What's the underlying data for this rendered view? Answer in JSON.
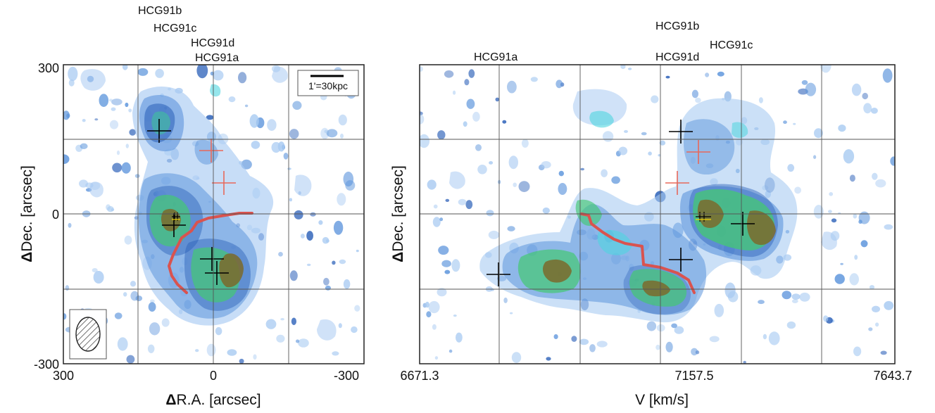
{
  "figure": {
    "colors": {
      "contour_light": "#a9cbf2",
      "contour_mid": "#5d95dc",
      "contour_dark": "#2a5fb8",
      "contour_cyan": "#4fd5df",
      "contour_green": "#44c873",
      "contour_core": "#7b6a2c",
      "cross_black": "#000000",
      "cross_red": "#e8685a",
      "path_red": "#d9534f",
      "grid": "#555555"
    },
    "left_panel": {
      "x_label": "R.A. [arcsec]",
      "x_label_symbol": "Δ",
      "y_label": "Dec. [arcsec]",
      "y_label_symbol": "Δ",
      "x_ticks": [
        "300",
        "0",
        "-300"
      ],
      "y_ticks": [
        "300",
        "0",
        "-300"
      ],
      "scale_bar_label": "1'=30kpc",
      "galaxy_labels": [
        "HCG91b",
        "HCG91c",
        "HCG91d",
        "HCG91a"
      ],
      "beam_icon": "hatched-ellipse-icon"
    },
    "right_panel": {
      "x_label": "V [km/s]",
      "y_label": "Dec. [arcsec]",
      "y_label_symbol": "Δ",
      "x_ticks": [
        "6671.3",
        "7157.5",
        "7643.7"
      ],
      "galaxy_labels": [
        "HCG91a",
        "HCG91b",
        "HCG91d",
        "HCG91c"
      ]
    }
  }
}
